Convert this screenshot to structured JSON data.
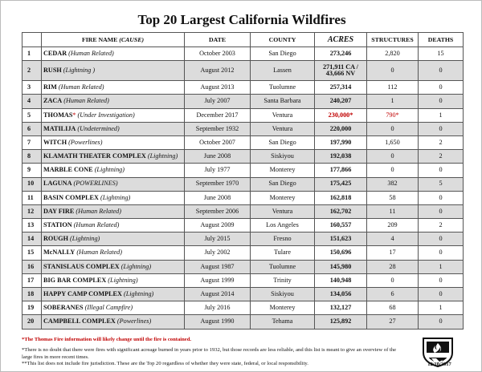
{
  "title": "Top 20 Largest California Wildfires",
  "headers": {
    "num": "",
    "fire_name": "FIRE NAME",
    "cause": "(CAUSE)",
    "date": "DATE",
    "county": "COUNTY",
    "acres": "ACRES",
    "structures": "STRUCTURES",
    "deaths": "DEATHS"
  },
  "rows": [
    {
      "num": "1",
      "name": "CEDAR",
      "cause": "(Human Related)",
      "date": "October 2003",
      "county": "San Diego",
      "acres": "273,246",
      "structures": "2,820",
      "deaths": "15"
    },
    {
      "num": "2",
      "name": "RUSH",
      "cause": "(Lightning )",
      "date": "August 2012",
      "county": "Lassen",
      "acres": "271,911 CA / 43,666 NV",
      "structures": "0",
      "deaths": "0"
    },
    {
      "num": "3",
      "name": "RIM",
      "cause": "(Human Related)",
      "date": "August 2013",
      "county": "Tuolumne",
      "acres": "257,314",
      "structures": "112",
      "deaths": "0"
    },
    {
      "num": "4",
      "name": "ZACA",
      "cause": "(Human Related)",
      "date": "July 2007",
      "county": "Santa Barbara",
      "acres": "240,207",
      "structures": "1",
      "deaths": "0"
    },
    {
      "num": "5",
      "name": "THOMAS",
      "cause": "(Under Investigation)",
      "date": "December 2017",
      "county": "Ventura",
      "acres": "230,000*",
      "structures": "790*",
      "deaths": "1"
    },
    {
      "num": "6",
      "name": "MATILIJA",
      "cause": "(Undetermined)",
      "date": "September 1932",
      "county": "Ventura",
      "acres": "220,000",
      "structures": "0",
      "deaths": "0"
    },
    {
      "num": "7",
      "name": "WITCH",
      "cause": "(Powerlines)",
      "date": "October 2007",
      "county": "San Diego",
      "acres": "197,990",
      "structures": "1,650",
      "deaths": "2"
    },
    {
      "num": "8",
      "name": "KLAMATH THEATER COMPLEX",
      "cause": "(Lightning)",
      "date": "June 2008",
      "county": "Siskiyou",
      "acres": "192,038",
      "structures": "0",
      "deaths": "2"
    },
    {
      "num": "9",
      "name": "MARBLE CONE",
      "cause": "(Lightning)",
      "date": "July 1977",
      "county": "Monterey",
      "acres": "177,866",
      "structures": "0",
      "deaths": "0"
    },
    {
      "num": "10",
      "name": "LAGUNA",
      "cause": "(POWERLINES)",
      "date": "September 1970",
      "county": "San Diego",
      "acres": "175,425",
      "structures": "382",
      "deaths": "5"
    },
    {
      "num": "11",
      "name": "BASIN COMPLEX",
      "cause": "(Lightning)",
      "date": "June 2008",
      "county": "Monterey",
      "acres": "162,818",
      "structures": "58",
      "deaths": "0"
    },
    {
      "num": "12",
      "name": "DAY FIRE",
      "cause": "(Human Related)",
      "date": "September 2006",
      "county": "Ventura",
      "acres": "162,702",
      "structures": "11",
      "deaths": "0"
    },
    {
      "num": "13",
      "name": "STATION",
      "cause": "(Human Related)",
      "date": "August 2009",
      "county": "Los Angeles",
      "acres": "160,557",
      "structures": "209",
      "deaths": "2"
    },
    {
      "num": "14",
      "name": "ROUGH",
      "cause": "(Lightning)",
      "date": "July 2015",
      "county": "Fresno",
      "acres": "151,623",
      "structures": "4",
      "deaths": "0"
    },
    {
      "num": "15",
      "name": "McNALLY",
      "cause": "(Human Related)",
      "date": "July 2002",
      "county": "Tulare",
      "acres": "150,696",
      "structures": "17",
      "deaths": "0"
    },
    {
      "num": "16",
      "name": "STANISLAUS COMPLEX",
      "cause": "(Lightning)",
      "date": "August 1987",
      "county": "Tuolumne",
      "acres": "145,980",
      "structures": "28",
      "deaths": "1"
    },
    {
      "num": "17",
      "name": "BIG BAR COMPLEX",
      "cause": "(Lightning)",
      "date": "August 1999",
      "county": "Trinity",
      "acres": "140,948",
      "structures": "0",
      "deaths": "0"
    },
    {
      "num": "18",
      "name": "HAPPY CAMP COMPLEX",
      "cause": "(Lightning)",
      "date": "August 2014",
      "county": "Siskiyou",
      "acres": "134,056",
      "structures": "6",
      "deaths": "0"
    },
    {
      "num": "19",
      "name": "SOBERANES",
      "cause": "(Illegal Campfire)",
      "date": "July 2016",
      "county": "Monterey",
      "acres": "132,127",
      "structures": "68",
      "deaths": "1"
    },
    {
      "num": "20",
      "name": "CAMPBELL COMPLEX",
      "cause": "(Powerlines)",
      "date": "August 1990",
      "county": "Tehama",
      "acres": "125,892",
      "structures": "27",
      "deaths": "0"
    }
  ],
  "thomas_asterisk": "*",
  "notes": {
    "red_note": "*The Thomas Fire information will likely change until the fire is contained.",
    "note1": "*There is no doubt that there were fires with significant acreage burned in years prior to 1932, but those records are less reliable, and this list is meant to give an overview of the large fires in more recent times.",
    "note2": "**This list does not include fire jurisdiction.  These are the Top 20 regardless of whether they were state, federal, or local responsibility."
  },
  "logo_text": "CAL FIRE",
  "doc_date": "12/10/2017",
  "colors": {
    "red": "#c00000",
    "shade": "#dcdcdc"
  }
}
